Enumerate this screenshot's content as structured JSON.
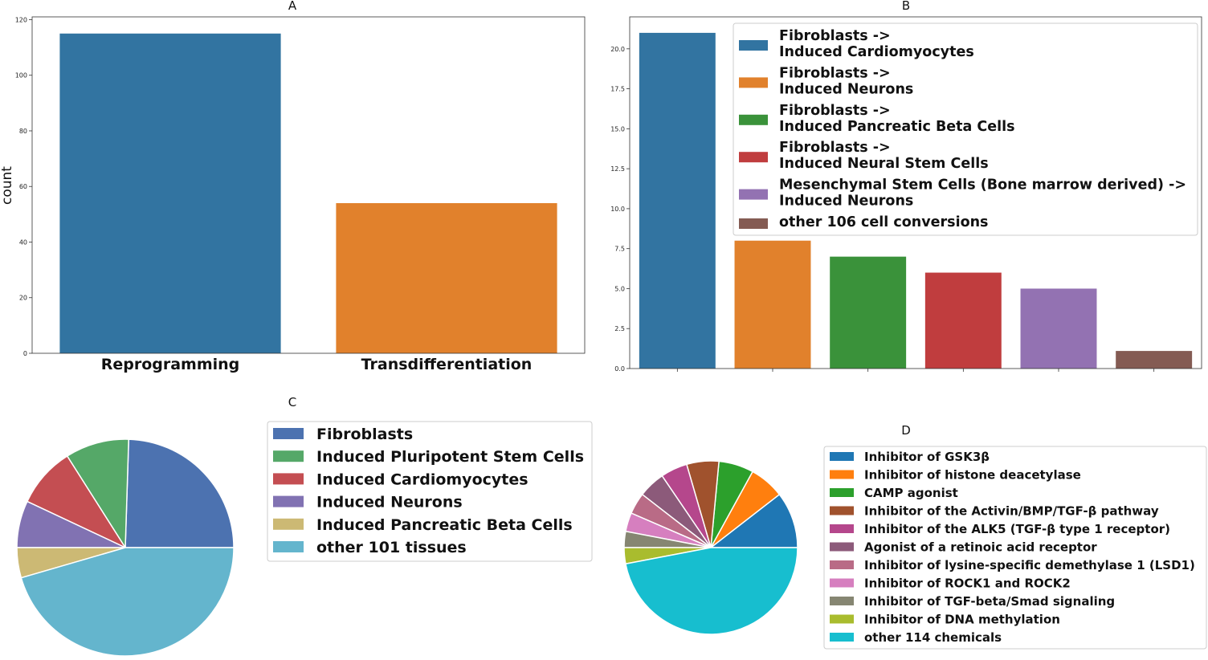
{
  "chart_data": [
    {
      "panel": "A",
      "type": "bar",
      "title": "A",
      "ylabel": "count",
      "categories": [
        "Reprogramming",
        "Transdifferentiation"
      ],
      "values": [
        115,
        54
      ],
      "colors": [
        "#3274a1",
        "#e1812c"
      ],
      "ylim": [
        0,
        121
      ],
      "yticks": [
        "0",
        "20",
        "40",
        "60",
        "80",
        "100",
        "120"
      ]
    },
    {
      "panel": "B",
      "type": "bar",
      "title": "B",
      "categories": [
        "Fibroblasts ->\nInduced Cardiomyocytes",
        "Fibroblasts ->\nInduced Neurons",
        "Fibroblasts ->\nInduced Pancreatic Beta Cells",
        "Fibroblasts ->\nInduced Neural Stem Cells",
        "Mesenchymal Stem Cells (Bone marrow derived) ->\nInduced Neurons",
        "other 106 cell conversions"
      ],
      "values": [
        21,
        8,
        7,
        6,
        5,
        1.1
      ],
      "colors": [
        "#3274a1",
        "#e1812c",
        "#3a923a",
        "#c03d3e",
        "#9372b2",
        "#845b53"
      ],
      "ylim": [
        0,
        22
      ],
      "yticks": [
        "0.0",
        "2.5",
        "5.0",
        "7.5",
        "10.0",
        "12.5",
        "15.0",
        "17.5",
        "20.0"
      ],
      "legend_position": "top-right"
    },
    {
      "panel": "C",
      "type": "pie",
      "title": "C",
      "labels": [
        "Fibroblasts",
        "Induced Pluripotent Stem Cells",
        "Induced Cardiomyocytes",
        "Induced Neurons",
        "Induced Pancreatic Beta Cells",
        "other 101 tissues"
      ],
      "values": [
        24.5,
        9.5,
        9,
        7,
        4.5,
        45.5
      ],
      "colors": [
        "#4c72b0",
        "#55a868",
        "#c44e52",
        "#8172b2",
        "#ccb974",
        "#64b5cd"
      ],
      "legend_position": "right"
    },
    {
      "panel": "D",
      "type": "pie",
      "title": "D",
      "labels": [
        "Inhibitor of GSK3β",
        "Inhibitor of histone deacetylase",
        "CAMP agonist",
        "Inhibitor of the Activin/BMP/TGF-β pathway",
        "Inhibitor of the ALK5 (TGF-β type 1 receptor)",
        "Agonist of a retinoic acid receptor",
        "Inhibitor of lysine-specific demethylase 1 (LSD1)",
        "Inhibitor of ROCK1 and ROCK2",
        "Inhibitor of TGF-beta/Smad signaling",
        "Inhibitor of DNA methylation",
        "other 114 chemicals"
      ],
      "values": [
        10.5,
        6.5,
        6.5,
        6,
        5,
        5,
        4,
        3.5,
        3,
        3,
        47
      ],
      "colors": [
        "#1f77b4",
        "#ff7f0e",
        "#2ca02c",
        "#a0522d",
        "#b5478c",
        "#8c5a7a",
        "#b96b86",
        "#d67fbf",
        "#868672",
        "#a9bc2e",
        "#17becf"
      ],
      "legend_position": "right"
    }
  ]
}
